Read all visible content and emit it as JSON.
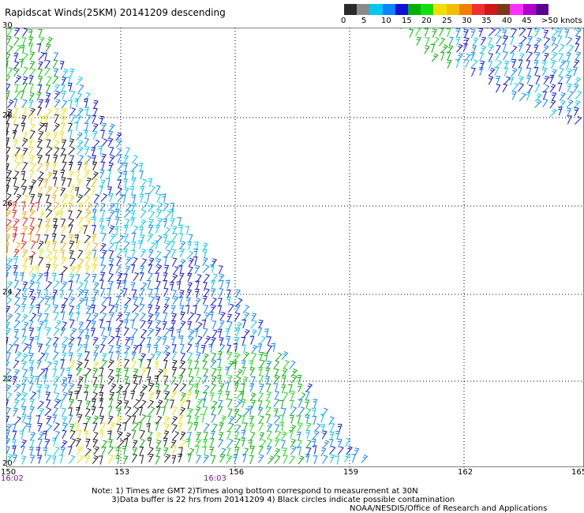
{
  "title": "Rapidscat Winds(25KM) 20141209 descending",
  "legend": {
    "unit_label": "knots",
    "colors": [
      "#2a2a2a",
      "#8a8a8a",
      "#00c8f0",
      "#0a84ff",
      "#1010d8",
      "#00b000",
      "#10e010",
      "#f0e000",
      "#f0c000",
      "#f08000",
      "#f03030",
      "#d01818",
      "#7a3a1a",
      "#ff30ff",
      "#b000d0",
      "#5a0090"
    ],
    "tick_labels": [
      "0",
      "5",
      "10",
      "15",
      "20",
      "25",
      "30",
      "35",
      "40",
      "45",
      ">50"
    ]
  },
  "map": {
    "lat_labels": [
      "30",
      "28",
      "26",
      "24",
      "22",
      "20"
    ],
    "lon_labels": [
      "150",
      "153",
      "156",
      "159",
      "162",
      "165"
    ],
    "grid": "dotted"
  },
  "times": [
    "16:02",
    "16:03"
  ],
  "notes": "Note: 1) Times are GMT 2)Times along bottom correspond to measurement at 30N\n        3)Data buffer is 22 hrs from 20141209 4) Black circles indicate possible contamination",
  "credit": "NOAA/NESDIS/Office of Research and Applications"
}
